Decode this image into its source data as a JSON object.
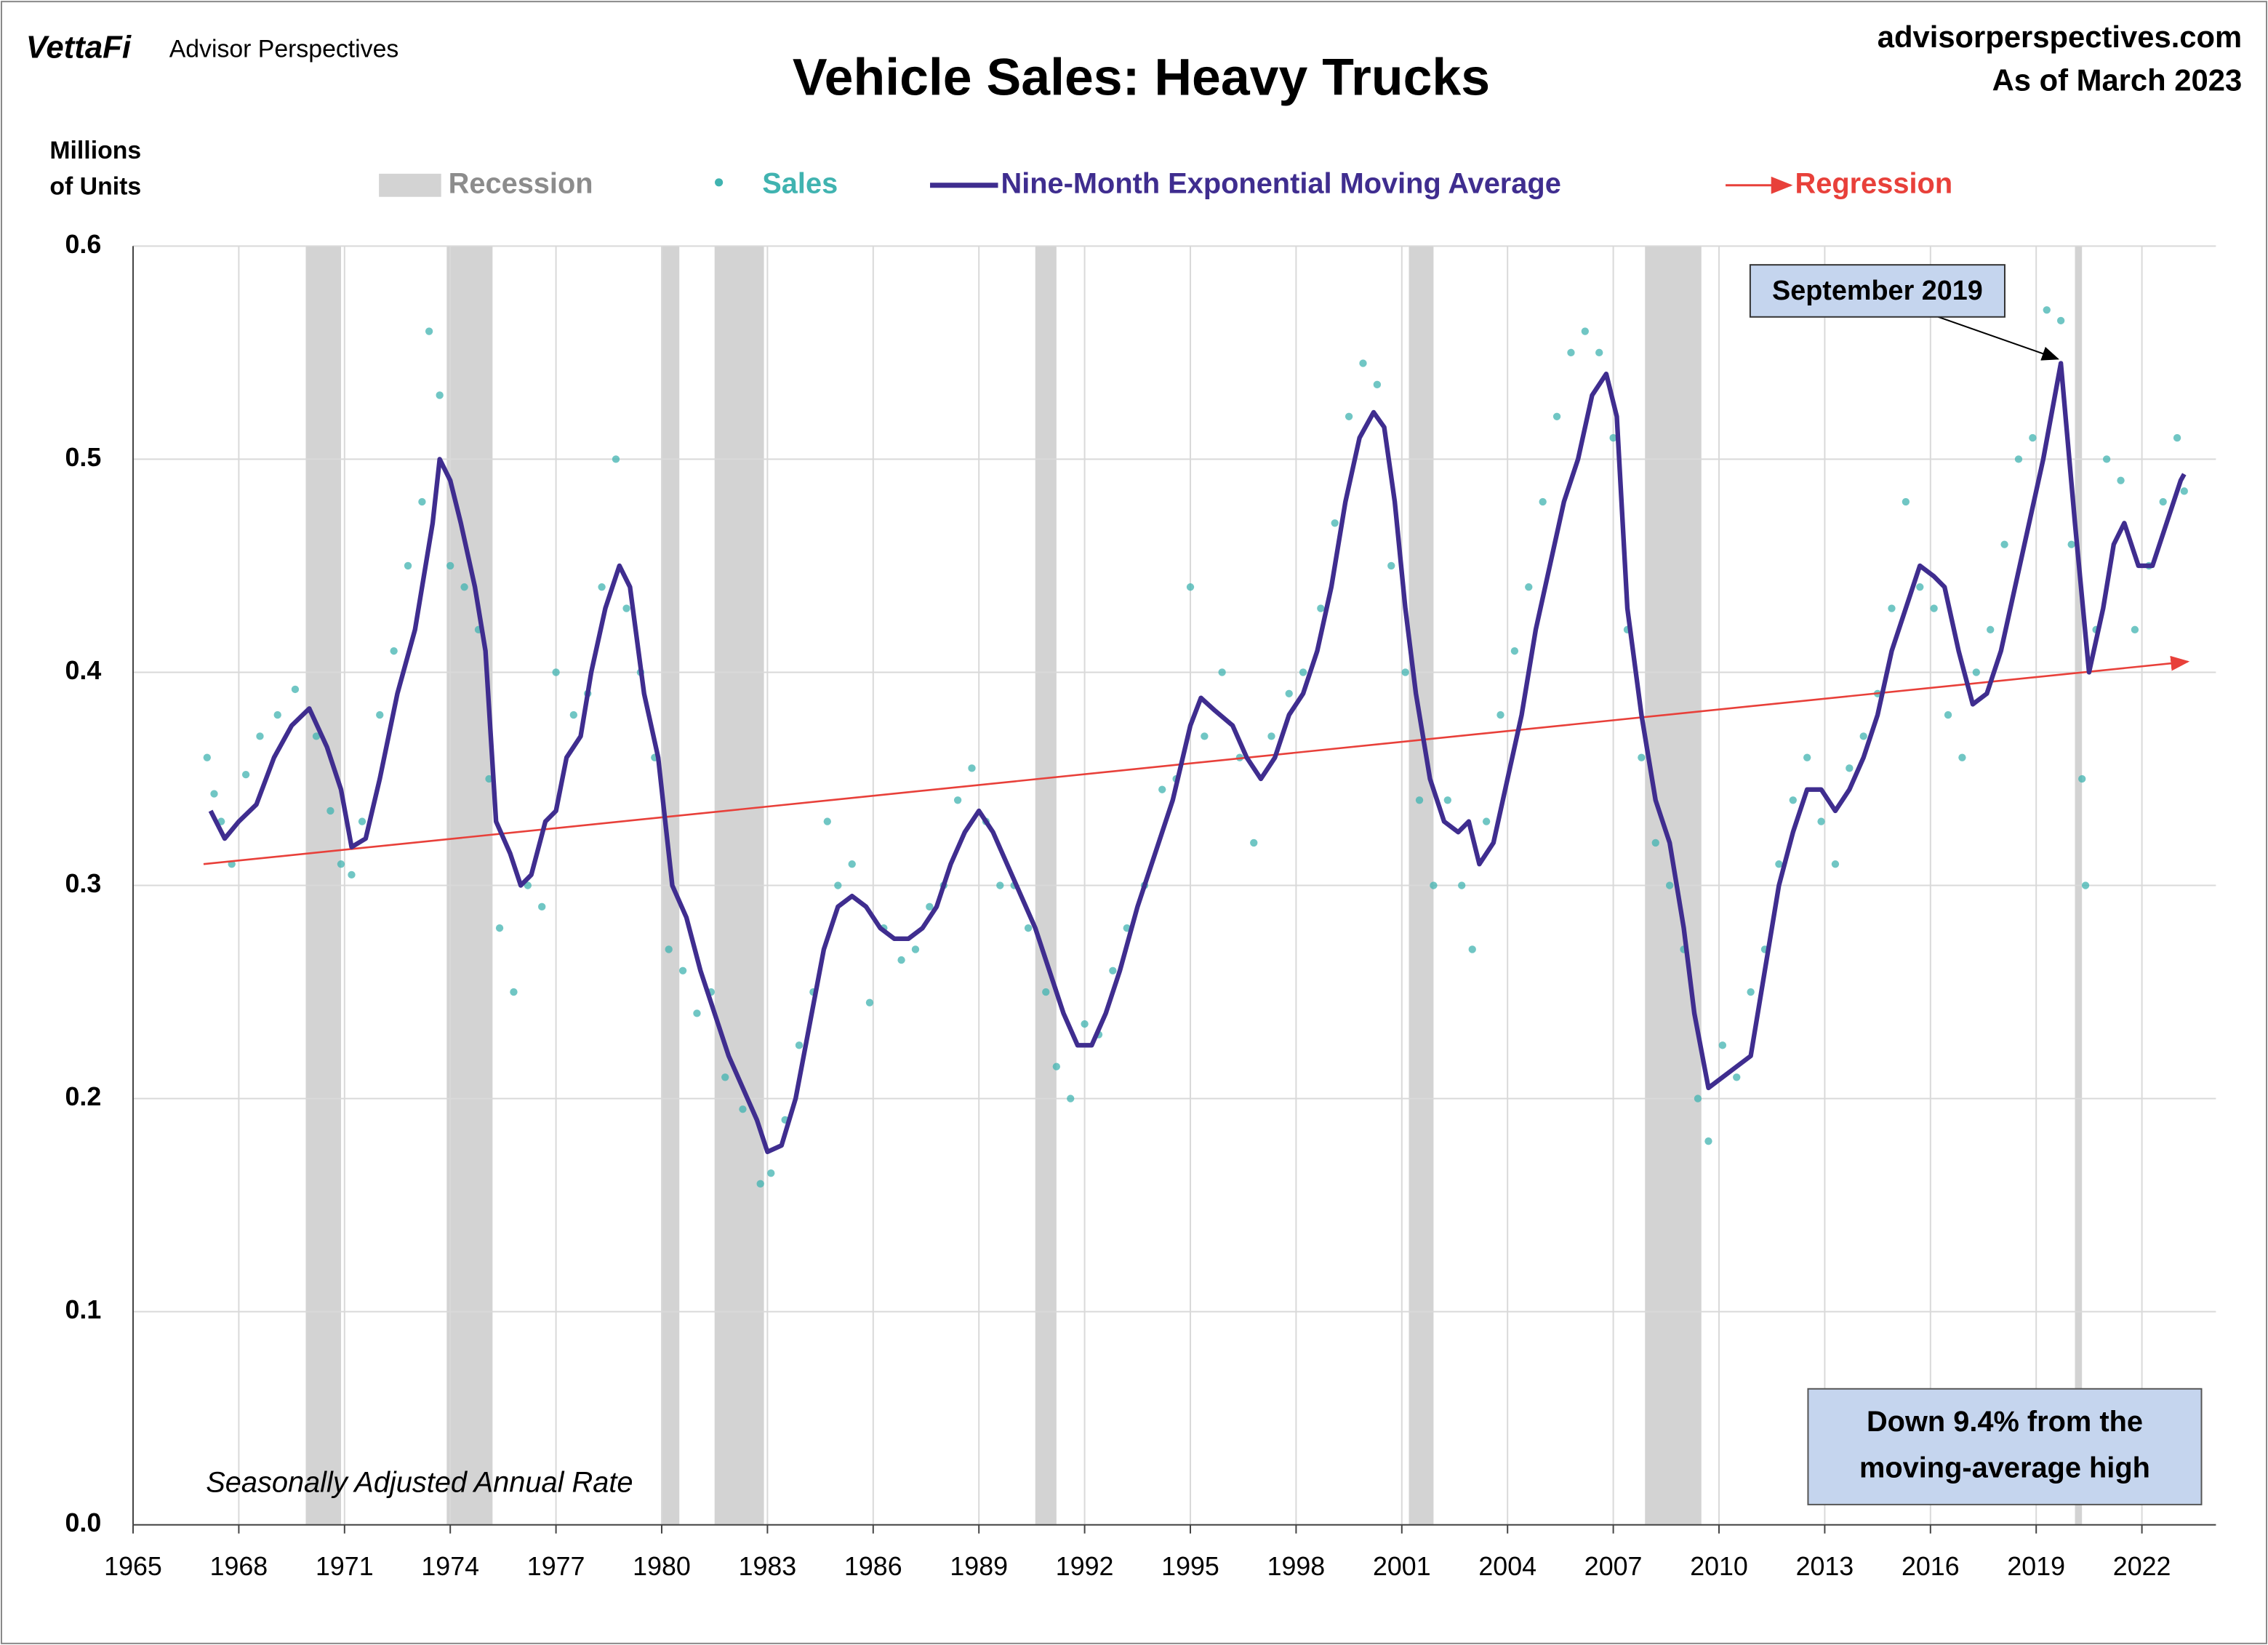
{
  "chart_data": {
    "type": "line",
    "title": "Vehicle Sales: Heavy Trucks",
    "brand": "VettaFi",
    "brand_sub": "Advisor Perspectives",
    "source": "advisorperspectives.com",
    "date_note": "As of March 2023",
    "y_label": [
      "Millions",
      "of Units"
    ],
    "note": "Seasonally Adjusted Annual Rate",
    "callout": {
      "text": "September 2019",
      "x": 2019.7,
      "y": 0.545
    },
    "summary": [
      "Down 9.4% from the",
      "moving-average high"
    ],
    "xlim": [
      1965,
      2024.1
    ],
    "ylim": [
      0,
      0.6
    ],
    "xticks": [
      1965,
      1968,
      1971,
      1974,
      1977,
      1980,
      1983,
      1986,
      1989,
      1992,
      1995,
      1998,
      2001,
      2004,
      2007,
      2010,
      2013,
      2016,
      2019,
      2022
    ],
    "yticks": [
      {
        "value": 0,
        "label": "0.0"
      },
      0.1,
      0.2,
      0.3,
      0.4,
      0.5,
      0.6
    ],
    "grid": true,
    "recession": {
      "name": "Recession",
      "color": "#d3d3d3",
      "spans": [
        [
          1969.9,
          1970.9
        ],
        [
          1973.9,
          1975.2
        ],
        [
          1980.0,
          1980.5
        ],
        [
          1981.5,
          1982.9
        ],
        [
          1990.6,
          1991.2
        ],
        [
          2001.2,
          2001.9
        ],
        [
          2007.9,
          2009.5
        ],
        [
          2020.1,
          2020.3
        ]
      ]
    },
    "series": [
      {
        "name": "Sales",
        "type": "scatter",
        "color": "#40b3b0",
        "x": [
          1967.1,
          1967.3,
          1967.5,
          1967.8,
          1968.2,
          1968.6,
          1969.1,
          1969.6,
          1970.2,
          1970.6,
          1970.9,
          1971.2,
          1971.5,
          1972.0,
          1972.4,
          1972.8,
          1973.2,
          1973.4,
          1973.7,
          1974.0,
          1974.4,
          1974.8,
          1975.1,
          1975.4,
          1975.8,
          1976.2,
          1976.6,
          1977.0,
          1977.5,
          1977.9,
          1978.3,
          1978.7,
          1979.0,
          1979.4,
          1979.8,
          1980.2,
          1980.6,
          1981.0,
          1981.4,
          1981.8,
          1982.3,
          1982.8,
          1983.1,
          1983.5,
          1983.9,
          1984.3,
          1984.7,
          1985.0,
          1985.4,
          1985.9,
          1986.3,
          1986.8,
          1987.2,
          1987.6,
          1988.0,
          1988.4,
          1988.8,
          1989.2,
          1989.6,
          1990.0,
          1990.4,
          1990.9,
          1991.2,
          1991.6,
          1992.0,
          1992.4,
          1992.8,
          1993.2,
          1993.7,
          1994.2,
          1994.6,
          1995.0,
          1995.4,
          1995.9,
          1996.4,
          1996.8,
          1997.3,
          1997.8,
          1998.2,
          1998.7,
          1999.1,
          1999.5,
          1999.9,
          2000.3,
          2000.7,
          2001.1,
          2001.5,
          2001.9,
          2002.3,
          2002.7,
          2003.0,
          2003.4,
          2003.8,
          2004.2,
          2004.6,
          2005.0,
          2005.4,
          2005.8,
          2006.2,
          2006.6,
          2007.0,
          2007.4,
          2007.8,
          2008.2,
          2008.6,
          2009.0,
          2009.4,
          2009.7,
          2010.1,
          2010.5,
          2010.9,
          2011.3,
          2011.7,
          2012.1,
          2012.5,
          2012.9,
          2013.3,
          2013.7,
          2014.1,
          2014.5,
          2014.9,
          2015.3,
          2015.7,
          2016.1,
          2016.5,
          2016.9,
          2017.3,
          2017.7,
          2018.1,
          2018.5,
          2018.9,
          2019.3,
          2019.7,
          2020.0,
          2020.3,
          2020.4,
          2020.7,
          2021.0,
          2021.4,
          2021.8,
          2022.2,
          2022.6,
          2023.0,
          2023.2
        ],
        "values": [
          0.36,
          0.343,
          0.33,
          0.31,
          0.352,
          0.37,
          0.38,
          0.392,
          0.37,
          0.335,
          0.31,
          0.305,
          0.33,
          0.38,
          0.41,
          0.45,
          0.48,
          0.56,
          0.53,
          0.45,
          0.44,
          0.42,
          0.35,
          0.28,
          0.25,
          0.3,
          0.29,
          0.4,
          0.38,
          0.39,
          0.44,
          0.5,
          0.43,
          0.4,
          0.36,
          0.27,
          0.26,
          0.24,
          0.25,
          0.21,
          0.195,
          0.16,
          0.165,
          0.19,
          0.225,
          0.25,
          0.33,
          0.3,
          0.31,
          0.245,
          0.28,
          0.265,
          0.27,
          0.29,
          0.3,
          0.34,
          0.355,
          0.33,
          0.3,
          0.3,
          0.28,
          0.25,
          0.215,
          0.2,
          0.235,
          0.23,
          0.26,
          0.28,
          0.3,
          0.345,
          0.35,
          0.44,
          0.37,
          0.4,
          0.36,
          0.32,
          0.37,
          0.39,
          0.4,
          0.43,
          0.47,
          0.52,
          0.545,
          0.535,
          0.45,
          0.4,
          0.34,
          0.3,
          0.34,
          0.3,
          0.27,
          0.33,
          0.38,
          0.41,
          0.44,
          0.48,
          0.52,
          0.55,
          0.56,
          0.55,
          0.51,
          0.42,
          0.36,
          0.32,
          0.3,
          0.27,
          0.2,
          0.18,
          0.225,
          0.21,
          0.25,
          0.27,
          0.31,
          0.34,
          0.36,
          0.33,
          0.31,
          0.355,
          0.37,
          0.39,
          0.43,
          0.48,
          0.44,
          0.43,
          0.38,
          0.36,
          0.4,
          0.42,
          0.46,
          0.5,
          0.51,
          0.57,
          0.565,
          0.46,
          0.35,
          0.3,
          0.42,
          0.5,
          0.49,
          0.42,
          0.45,
          0.48,
          0.51,
          0.485
        ]
      },
      {
        "name": "Nine-Month Exponential Moving Average",
        "type": "line",
        "color": "#3f2d8f",
        "x": [
          1967.2,
          1967.6,
          1968.0,
          1968.5,
          1969.0,
          1969.5,
          1970.0,
          1970.5,
          1970.9,
          1971.2,
          1971.6,
          1972.0,
          1972.5,
          1973.0,
          1973.5,
          1973.7,
          1974.0,
          1974.3,
          1974.7,
          1975.0,
          1975.3,
          1975.7,
          1976.0,
          1976.3,
          1976.7,
          1977.0,
          1977.3,
          1977.7,
          1978.0,
          1978.4,
          1978.8,
          1979.1,
          1979.5,
          1979.9,
          1980.3,
          1980.7,
          1981.1,
          1981.5,
          1981.9,
          1982.3,
          1982.7,
          1983.0,
          1983.4,
          1983.8,
          1984.2,
          1984.6,
          1985.0,
          1985.4,
          1985.8,
          1986.2,
          1986.6,
          1987.0,
          1987.4,
          1987.8,
          1988.2,
          1988.6,
          1989.0,
          1989.4,
          1989.8,
          1990.2,
          1990.6,
          1991.0,
          1991.4,
          1991.8,
          1992.2,
          1992.6,
          1993.0,
          1993.5,
          1994.0,
          1994.5,
          1995.0,
          1995.3,
          1995.7,
          1996.2,
          1996.6,
          1997.0,
          1997.4,
          1997.8,
          1998.2,
          1998.6,
          1999.0,
          1999.4,
          1999.8,
          2000.2,
          2000.5,
          2000.8,
          2001.1,
          2001.4,
          2001.8,
          2002.2,
          2002.6,
          2002.9,
          2003.2,
          2003.6,
          2004.0,
          2004.4,
          2004.8,
          2005.2,
          2005.6,
          2006.0,
          2006.4,
          2006.8,
          2007.1,
          2007.4,
          2007.8,
          2008.2,
          2008.6,
          2009.0,
          2009.3,
          2009.7,
          2010.1,
          2010.5,
          2010.9,
          2011.3,
          2011.7,
          2012.1,
          2012.5,
          2012.9,
          2013.3,
          2013.7,
          2014.1,
          2014.5,
          2014.9,
          2015.3,
          2015.7,
          2016.1,
          2016.4,
          2016.8,
          2017.2,
          2017.6,
          2018.0,
          2018.4,
          2018.8,
          2019.2,
          2019.7,
          2020.1,
          2020.5,
          2020.9,
          2021.2,
          2021.5,
          2021.9,
          2022.3,
          2022.7,
          2023.1,
          2023.2
        ],
        "values": [
          0.335,
          0.322,
          0.33,
          0.338,
          0.36,
          0.375,
          0.383,
          0.365,
          0.345,
          0.318,
          0.322,
          0.35,
          0.39,
          0.42,
          0.47,
          0.5,
          0.49,
          0.47,
          0.44,
          0.41,
          0.33,
          0.315,
          0.3,
          0.305,
          0.33,
          0.335,
          0.36,
          0.37,
          0.4,
          0.43,
          0.45,
          0.44,
          0.39,
          0.36,
          0.3,
          0.285,
          0.26,
          0.24,
          0.22,
          0.205,
          0.19,
          0.175,
          0.178,
          0.2,
          0.235,
          0.27,
          0.29,
          0.295,
          0.29,
          0.28,
          0.275,
          0.275,
          0.28,
          0.29,
          0.31,
          0.325,
          0.335,
          0.325,
          0.31,
          0.295,
          0.28,
          0.26,
          0.24,
          0.225,
          0.225,
          0.24,
          0.26,
          0.29,
          0.315,
          0.34,
          0.375,
          0.388,
          0.382,
          0.375,
          0.36,
          0.35,
          0.36,
          0.38,
          0.39,
          0.41,
          0.44,
          0.48,
          0.51,
          0.522,
          0.515,
          0.48,
          0.43,
          0.39,
          0.35,
          0.33,
          0.325,
          0.33,
          0.31,
          0.32,
          0.35,
          0.38,
          0.42,
          0.45,
          0.48,
          0.5,
          0.53,
          0.54,
          0.52,
          0.43,
          0.38,
          0.34,
          0.32,
          0.28,
          0.24,
          0.205,
          0.21,
          0.215,
          0.22,
          0.26,
          0.3,
          0.325,
          0.345,
          0.345,
          0.335,
          0.345,
          0.36,
          0.38,
          0.41,
          0.43,
          0.45,
          0.445,
          0.44,
          0.41,
          0.385,
          0.39,
          0.41,
          0.44,
          0.47,
          0.5,
          0.545,
          0.47,
          0.4,
          0.43,
          0.46,
          0.47,
          0.45,
          0.45,
          0.47,
          0.49,
          0.493
        ]
      },
      {
        "name": "Regression",
        "type": "regression",
        "color": "#e8403a",
        "x": [
          1967,
          2023.3
        ],
        "values": [
          0.31,
          0.405
        ]
      }
    ]
  }
}
